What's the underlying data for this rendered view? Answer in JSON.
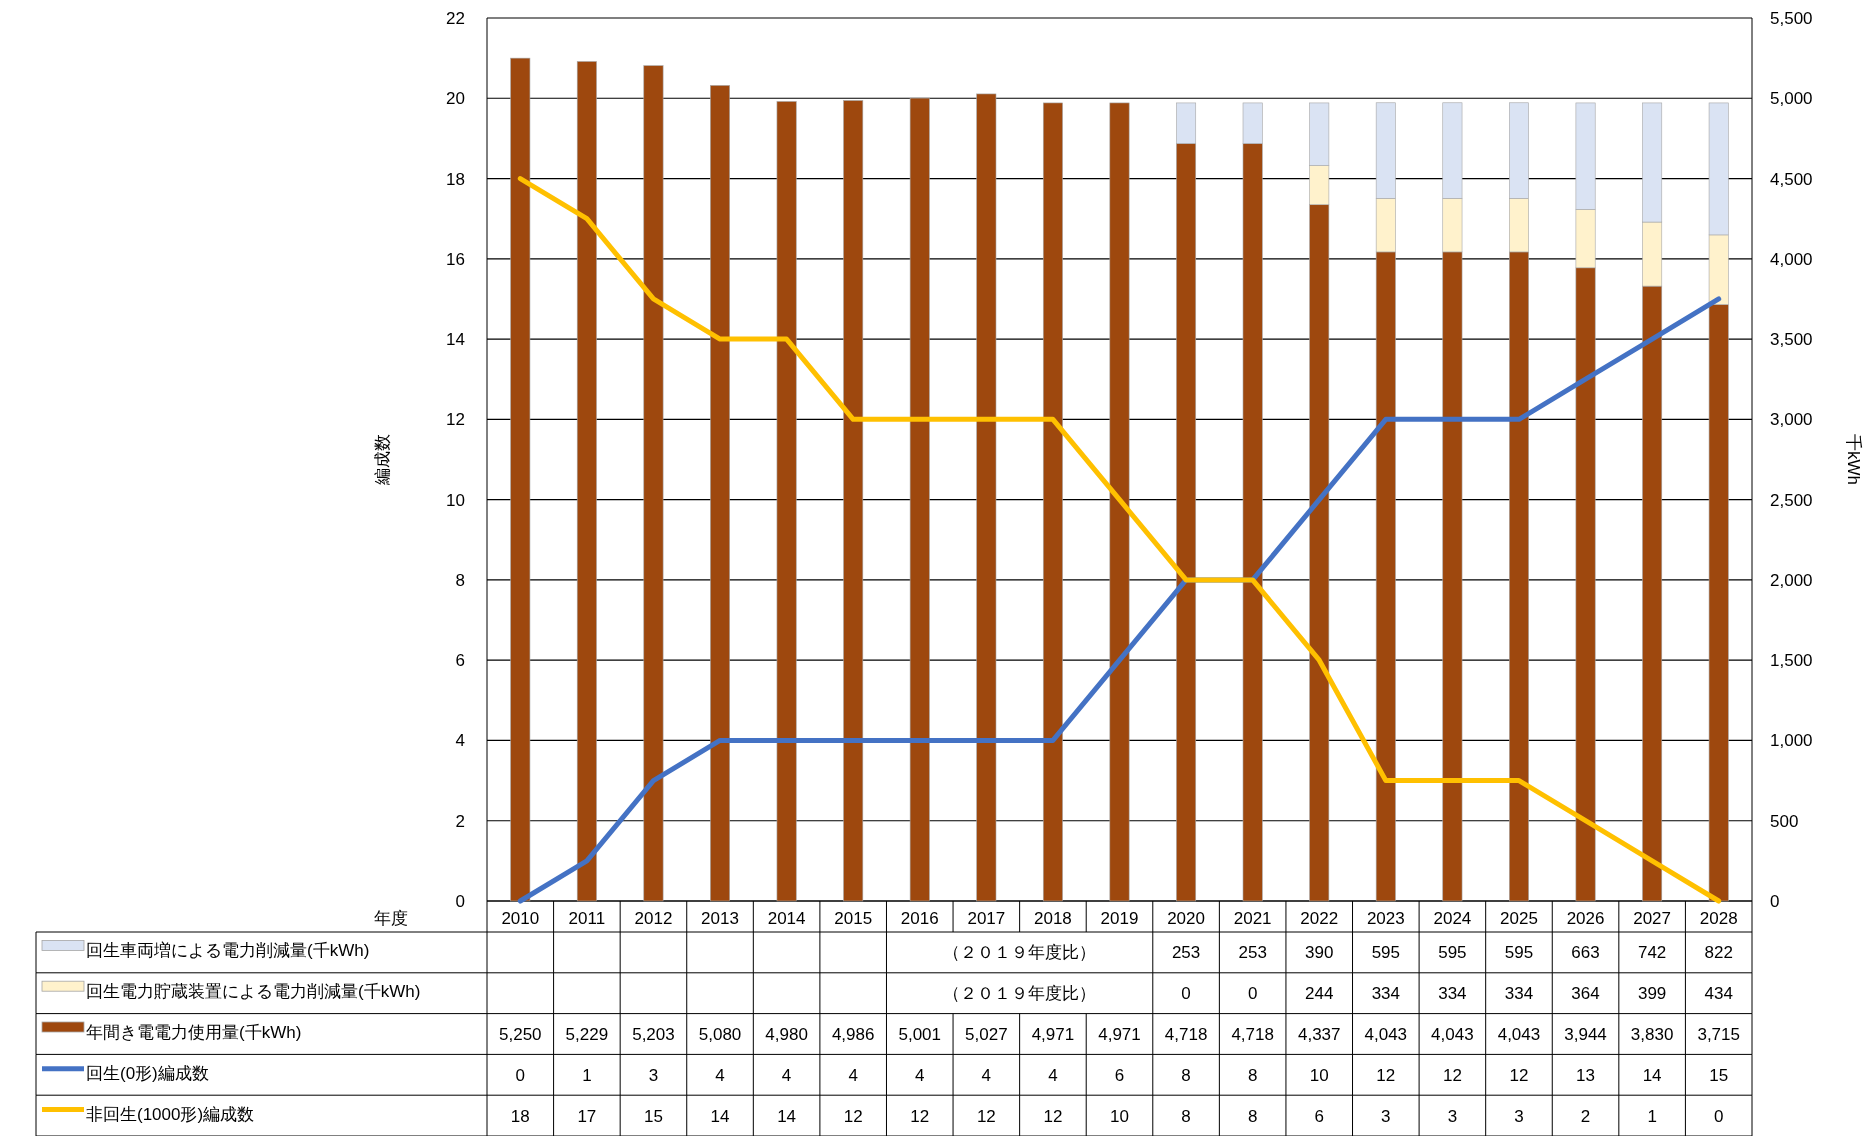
{
  "chart_data": {
    "type": "bar",
    "xlabel": "年度",
    "ylabel": "編成数",
    "y2label": "千kWh",
    "categories": [
      "2010",
      "2011",
      "2012",
      "2013",
      "2014",
      "2015",
      "2016",
      "2017",
      "2018",
      "2019",
      "2020",
      "2021",
      "2022",
      "2023",
      "2024",
      "2025",
      "2026",
      "2027",
      "2028"
    ],
    "stacked": true,
    "grid": "y",
    "legend": "bottom",
    "line_style": "solid",
    "marker": "none",
    "ylim": [
      0,
      22
    ],
    "yticks": [
      0,
      2,
      4,
      6,
      8,
      10,
      12,
      14,
      16,
      18,
      20,
      22
    ],
    "y2lim": [
      0,
      5500
    ],
    "y2ticks": [
      0,
      500,
      {
        "value": 1000,
        "label": "1,000"
      },
      {
        "value": 1500,
        "label": "1,500"
      },
      {
        "value": 2000,
        "label": "2,000"
      },
      {
        "value": 2500,
        "label": "2,500"
      },
      {
        "value": 3000,
        "label": "3,000"
      },
      {
        "value": 3500,
        "label": "3,500"
      },
      {
        "value": 4000,
        "label": "4,000"
      },
      {
        "value": 4500,
        "label": "4,500"
      },
      {
        "value": 5000,
        "label": "5,000"
      },
      {
        "value": 5500,
        "label": "5,500"
      }
    ],
    "series": [
      {
        "name": "年間き電電力使用量(千kWh)",
        "axis": "y2",
        "color": "#9e480e",
        "values": [
          5250,
          5229,
          5203,
          5080,
          4980,
          4986,
          5001,
          5027,
          4971,
          4971,
          4718,
          4718,
          4337,
          4043,
          4043,
          4043,
          3944,
          3830,
          3715
        ],
        "value_labels": [
          "5,250",
          "5,229",
          "5,203",
          "5,080",
          "4,980",
          "4,986",
          "5,001",
          "5,027",
          "4,971",
          "4,971",
          "4,718",
          "4,718",
          "4,337",
          "4,043",
          "4,043",
          "4,043",
          "3,944",
          "3,830",
          "3,715"
        ]
      },
      {
        "name": "回生電力貯蔵装置による電力削減量(千kWh)",
        "axis": "y2",
        "color": "#fff2cc",
        "values": [
          null,
          null,
          null,
          null,
          null,
          null,
          null,
          null,
          null,
          null,
          0,
          0,
          244,
          334,
          334,
          334,
          364,
          399,
          434
        ],
        "value_labels": [
          null,
          null,
          null,
          null,
          null,
          null,
          null,
          null,
          null,
          null,
          "0",
          "0",
          "244",
          "334",
          "334",
          "334",
          "364",
          "399",
          "434"
        ]
      },
      {
        "name": "回生車両増による電力削減量(千kWh)",
        "axis": "y2",
        "color": "#dae3f3",
        "values": [
          null,
          null,
          null,
          null,
          null,
          null,
          null,
          null,
          null,
          null,
          253,
          253,
          390,
          595,
          595,
          595,
          663,
          742,
          822
        ],
        "value_labels": [
          null,
          null,
          null,
          null,
          null,
          null,
          null,
          null,
          null,
          null,
          "253",
          "253",
          "390",
          "595",
          "595",
          "595",
          "663",
          "742",
          "822"
        ]
      },
      {
        "name": "回生(0形)編成数",
        "type": "line",
        "color": "#4472c4",
        "values": [
          0,
          1,
          3,
          4,
          4,
          4,
          4,
          4,
          4,
          6,
          8,
          8,
          10,
          12,
          12,
          12,
          13,
          14,
          15
        ],
        "value_labels": [
          "0",
          "1",
          "3",
          "4",
          "4",
          "4",
          "4",
          "4",
          "4",
          "6",
          "8",
          "8",
          "10",
          "12",
          "12",
          "12",
          "13",
          "14",
          "15"
        ]
      },
      {
        "name": "非回生(1000形)編成数",
        "type": "line",
        "color": "#ffc000",
        "values": [
          18,
          17,
          15,
          14,
          14,
          12,
          12,
          12,
          12,
          10,
          8,
          8,
          6,
          3,
          3,
          3,
          2,
          1,
          0
        ],
        "value_labels": [
          "18",
          "17",
          "15",
          "14",
          "14",
          "12",
          "12",
          "12",
          "12",
          "10",
          "8",
          "8",
          "6",
          "3",
          "3",
          "3",
          "2",
          "1",
          "0"
        ]
      }
    ],
    "annotations": [
      "（２０１９年度比）",
      "（２０１９年度比）"
    ]
  }
}
